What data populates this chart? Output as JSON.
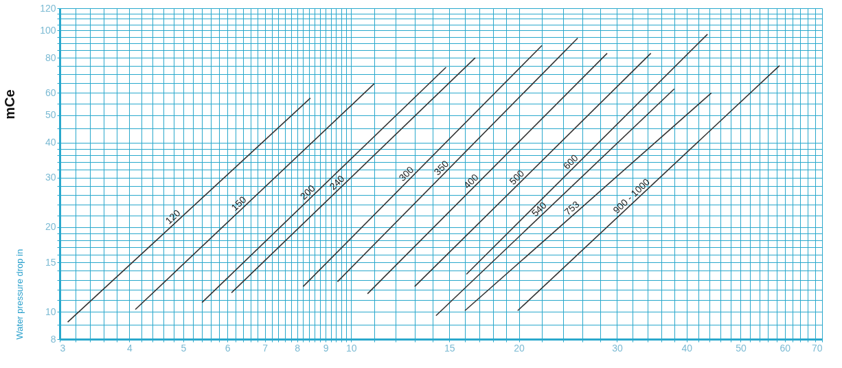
{
  "chart_data": {
    "type": "line",
    "ylabel": "Water pressure drop in",
    "annotations": [
      "mCe"
    ],
    "log": "xy",
    "grid": true,
    "legend": false,
    "marker": "none",
    "line_style": "solid",
    "xlim": [
      3,
      70
    ],
    "ylim": [
      8,
      120
    ],
    "xticks": [
      3,
      {
        "value": 3.2,
        "label": null
      },
      {
        "value": 3.4,
        "label": null
      },
      {
        "value": 3.6,
        "label": null
      },
      {
        "value": 3.8,
        "label": null
      },
      4,
      {
        "value": 4.2,
        "label": null
      },
      {
        "value": 4.4,
        "label": null
      },
      {
        "value": 4.6,
        "label": null
      },
      {
        "value": 4.8,
        "label": null
      },
      5,
      {
        "value": 5.2,
        "label": null
      },
      {
        "value": 5.4,
        "label": null
      },
      {
        "value": 5.6,
        "label": null
      },
      {
        "value": 5.8,
        "label": null
      },
      6,
      {
        "value": 6.2,
        "label": null
      },
      {
        "value": 6.4,
        "label": null
      },
      {
        "value": 6.6,
        "label": null
      },
      {
        "value": 6.8,
        "label": null
      },
      7,
      {
        "value": 7.2,
        "label": null
      },
      {
        "value": 7.4,
        "label": null
      },
      {
        "value": 7.6,
        "label": null
      },
      {
        "value": 7.8,
        "label": null
      },
      8,
      {
        "value": 8.2,
        "label": null
      },
      {
        "value": 8.4,
        "label": null
      },
      {
        "value": 8.6,
        "label": null
      },
      {
        "value": 8.8,
        "label": null
      },
      9,
      {
        "value": 9.2,
        "label": null
      },
      {
        "value": 9.4,
        "label": null
      },
      {
        "value": 9.6,
        "label": null
      },
      {
        "value": 9.8,
        "label": null
      },
      10,
      {
        "value": 11,
        "label": null
      },
      {
        "value": 12,
        "label": null
      },
      {
        "value": 13,
        "label": null
      },
      {
        "value": 14,
        "label": null
      },
      15,
      {
        "value": 16,
        "label": null
      },
      {
        "value": 17,
        "label": null
      },
      {
        "value": 18,
        "label": null
      },
      {
        "value": 19,
        "label": null
      },
      20,
      {
        "value": 22,
        "label": null
      },
      {
        "value": 24,
        "label": null
      },
      {
        "value": 26,
        "label": null
      },
      {
        "value": 28,
        "label": null
      },
      30,
      {
        "value": 32,
        "label": null
      },
      {
        "value": 34,
        "label": null
      },
      {
        "value": 36,
        "label": null
      },
      {
        "value": 38,
        "label": null
      },
      40,
      {
        "value": 42,
        "label": null
      },
      {
        "value": 44,
        "label": null
      },
      {
        "value": 46,
        "label": null
      },
      {
        "value": 48,
        "label": null
      },
      50,
      {
        "value": 52,
        "label": null
      },
      {
        "value": 54,
        "label": null
      },
      {
        "value": 56,
        "label": null
      },
      {
        "value": 58,
        "label": null
      },
      60,
      {
        "value": 62,
        "label": null
      },
      {
        "value": 64,
        "label": null
      },
      {
        "value": 66,
        "label": null
      },
      {
        "value": 68,
        "label": null
      },
      70
    ],
    "yticks": [
      8,
      {
        "value": 9,
        "label": null
      },
      10,
      {
        "value": 11,
        "label": null
      },
      {
        "value": 12,
        "label": null
      },
      {
        "value": 13,
        "label": null
      },
      {
        "value": 14,
        "label": null
      },
      15,
      {
        "value": 16,
        "label": null
      },
      {
        "value": 17,
        "label": null
      },
      {
        "value": 18,
        "label": null
      },
      {
        "value": 19,
        "label": null
      },
      20,
      {
        "value": 22,
        "label": null
      },
      {
        "value": 24,
        "label": null
      },
      {
        "value": 26,
        "label": null
      },
      {
        "value": 28,
        "label": null
      },
      30,
      {
        "value": 32,
        "label": null
      },
      {
        "value": 34,
        "label": null
      },
      {
        "value": 36,
        "label": null
      },
      {
        "value": 38,
        "label": null
      },
      40,
      {
        "value": 45,
        "label": null
      },
      50,
      {
        "value": 55,
        "label": null
      },
      60,
      {
        "value": 65,
        "label": null
      },
      {
        "value": 70,
        "label": null
      },
      {
        "value": 75,
        "label": null
      },
      80,
      {
        "value": 85,
        "label": null
      },
      {
        "value": 90,
        "label": null
      },
      {
        "value": 95,
        "label": null
      },
      100,
      {
        "value": 105,
        "label": null
      },
      {
        "value": 110,
        "label": null
      },
      {
        "value": 115,
        "label": null
      },
      120
    ],
    "series": [
      {
        "name": "120",
        "color": "#333333",
        "x": [
          3.1,
          8.45
        ],
        "values": [
          9.2,
          57.5
        ]
      },
      {
        "name": "150",
        "color": "#333333",
        "x": [
          4.1,
          11.0
        ],
        "values": [
          10.2,
          64.7
        ]
      },
      {
        "name": "200",
        "color": "#333333",
        "x": [
          5.4,
          14.8
        ],
        "values": [
          10.8,
          74
        ]
      },
      {
        "name": "240",
        "color": "#333333",
        "x": [
          6.1,
          16.7
        ],
        "values": [
          11.7,
          80
        ]
      },
      {
        "name": "300",
        "color": "#333333",
        "x": [
          8.2,
          22.0
        ],
        "values": [
          12.3,
          88.5
        ]
      },
      {
        "name": "350",
        "color": "#333333",
        "x": [
          9.45,
          25.5
        ],
        "values": [
          12.8,
          94
        ]
      },
      {
        "name": "400",
        "color": "#333333",
        "x": [
          10.7,
          28.8
        ],
        "values": [
          11.6,
          83
        ]
      },
      {
        "name": "500",
        "color": "#333333",
        "x": [
          13.0,
          34.5
        ],
        "values": [
          12.3,
          83
        ]
      },
      {
        "name": "600",
        "color": "#333333",
        "x": [
          16.1,
          43.6
        ],
        "values": [
          13.6,
          97
        ]
      },
      {
        "name": "540",
        "color": "#333333",
        "x": [
          14.2,
          38.0
        ],
        "values": [
          9.7,
          62
        ]
      },
      {
        "name": "753",
        "color": "#333333",
        "x": [
          16.0,
          44.3
        ],
        "values": [
          10.1,
          60
        ]
      },
      {
        "name": "900 - 1000",
        "color": "#333333",
        "x": [
          19.9,
          58.7
        ],
        "values": [
          10.1,
          75
        ]
      }
    ]
  }
}
